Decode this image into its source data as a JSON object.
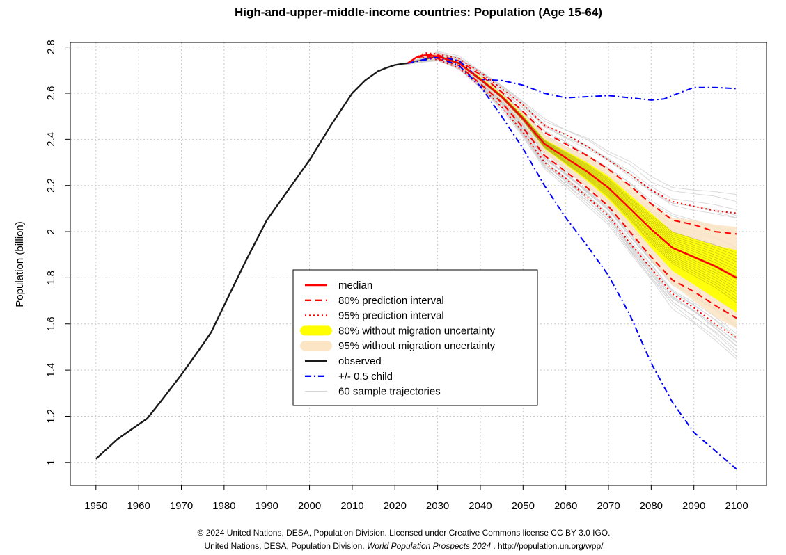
{
  "chart_data": {
    "type": "line",
    "title": "High-and-upper-middle-income countries: Population (Age 15-64)",
    "xlabel": "",
    "ylabel": "Population (billion)",
    "xlim": [
      1944,
      2107
    ],
    "ylim": [
      0.9,
      2.82
    ],
    "x_ticks": [
      1950,
      1960,
      1970,
      1980,
      1990,
      2000,
      2010,
      2020,
      2030,
      2040,
      2050,
      2060,
      2070,
      2080,
      2090,
      2100
    ],
    "y_ticks": [
      1.0,
      1.2,
      1.4,
      1.6,
      1.8,
      2.0,
      2.2,
      2.4,
      2.6,
      2.8
    ],
    "y_tick_labels": [
      "1",
      "1.2",
      "1.4",
      "1.6",
      "1.8",
      "2",
      "2.2",
      "2.4",
      "2.6",
      "2.8"
    ],
    "grid": true,
    "legend_position": "center-left",
    "colors": {
      "median": "#ff0000",
      "pi80": "#ff0000",
      "pi95": "#ff0000",
      "nomig80": "#ffff00",
      "nomig95": "#fce5c4",
      "observed": "#1a1a1a",
      "half_child": "#0000ff",
      "samples": "#cfcfcf"
    },
    "legend": [
      {
        "key": "median",
        "label": "median",
        "style": "solid"
      },
      {
        "key": "pi80",
        "label": "80% prediction interval",
        "style": "dashed"
      },
      {
        "key": "pi95",
        "label": "95% prediction interval",
        "style": "dotted"
      },
      {
        "key": "nomig80",
        "label": "80% without migration uncertainty",
        "style": "band"
      },
      {
        "key": "nomig95",
        "label": "95% without migration uncertainty",
        "style": "band"
      },
      {
        "key": "observed",
        "label": "observed",
        "style": "solid"
      },
      {
        "key": "half_child",
        "label": "+/- 0.5 child",
        "style": "dashdot"
      },
      {
        "key": "samples",
        "label": "60 sample trajectories",
        "style": "thin"
      }
    ],
    "observed": {
      "x": [
        1950,
        1955,
        1960,
        1962,
        1965,
        1970,
        1975,
        1977,
        1980,
        1985,
        1990,
        1995,
        2000,
        2005,
        2010,
        2013,
        2016,
        2018,
        2020,
        2022,
        2023
      ],
      "y": [
        1.015,
        1.1,
        1.165,
        1.19,
        1.26,
        1.38,
        1.51,
        1.565,
        1.68,
        1.87,
        2.05,
        2.18,
        2.31,
        2.46,
        2.6,
        2.655,
        2.695,
        2.71,
        2.722,
        2.728,
        2.73
      ]
    },
    "median": {
      "x": [
        2023,
        2025,
        2027,
        2030,
        2035,
        2040,
        2045,
        2050,
        2055,
        2060,
        2065,
        2070,
        2075,
        2080,
        2085,
        2090,
        2095,
        2100
      ],
      "y": [
        2.73,
        2.755,
        2.765,
        2.76,
        2.73,
        2.66,
        2.585,
        2.49,
        2.38,
        2.32,
        2.26,
        2.19,
        2.1,
        2.01,
        1.93,
        1.89,
        1.85,
        1.8
      ]
    },
    "pi80": {
      "x": [
        2023,
        2025,
        2027,
        2030,
        2035,
        2040,
        2045,
        2050,
        2055,
        2060,
        2065,
        2070,
        2075,
        2080,
        2085,
        2090,
        2095,
        2100
      ],
      "lower": [
        2.73,
        2.755,
        2.76,
        2.75,
        2.72,
        2.64,
        2.56,
        2.45,
        2.33,
        2.26,
        2.19,
        2.11,
        2.0,
        1.89,
        1.79,
        1.74,
        1.68,
        1.625
      ],
      "upper": [
        2.73,
        2.755,
        2.77,
        2.765,
        2.74,
        2.68,
        2.605,
        2.52,
        2.43,
        2.38,
        2.33,
        2.27,
        2.2,
        2.12,
        2.05,
        2.03,
        2.0,
        1.99
      ]
    },
    "pi95": {
      "x": [
        2023,
        2025,
        2027,
        2030,
        2035,
        2040,
        2045,
        2050,
        2055,
        2060,
        2065,
        2070,
        2075,
        2080,
        2085,
        2090,
        2095,
        2100
      ],
      "lower": [
        2.73,
        2.755,
        2.755,
        2.745,
        2.71,
        2.63,
        2.54,
        2.43,
        2.3,
        2.23,
        2.15,
        2.07,
        1.95,
        1.84,
        1.73,
        1.67,
        1.6,
        1.54
      ],
      "upper": [
        2.73,
        2.755,
        2.775,
        2.77,
        2.75,
        2.69,
        2.62,
        2.55,
        2.46,
        2.42,
        2.37,
        2.31,
        2.25,
        2.18,
        2.13,
        2.11,
        2.09,
        2.08
      ]
    },
    "nomig80": {
      "x": [
        2023,
        2030,
        2035,
        2040,
        2045,
        2050,
        2055,
        2060,
        2065,
        2070,
        2075,
        2080,
        2085,
        2090,
        2095,
        2100
      ],
      "lower": [
        2.73,
        2.755,
        2.725,
        2.655,
        2.58,
        2.48,
        2.36,
        2.29,
        2.22,
        2.14,
        2.04,
        1.93,
        1.83,
        1.77,
        1.71,
        1.65
      ],
      "upper": [
        2.73,
        2.765,
        2.735,
        2.67,
        2.595,
        2.505,
        2.4,
        2.35,
        2.3,
        2.24,
        2.16,
        2.08,
        2.0,
        1.97,
        1.94,
        1.92
      ]
    },
    "nomig95": {
      "x": [
        2023,
        2030,
        2035,
        2040,
        2045,
        2050,
        2055,
        2060,
        2065,
        2070,
        2075,
        2080,
        2085,
        2090,
        2095,
        2100
      ],
      "lower": [
        2.73,
        2.75,
        2.72,
        2.65,
        2.57,
        2.47,
        2.34,
        2.27,
        2.19,
        2.11,
        2.0,
        1.88,
        1.77,
        1.7,
        1.63,
        1.58
      ],
      "upper": [
        2.73,
        2.77,
        2.74,
        2.675,
        2.6,
        2.515,
        2.42,
        2.37,
        2.33,
        2.27,
        2.2,
        2.12,
        2.06,
        2.05,
        2.03,
        2.02
      ]
    },
    "half_child_upper": {
      "x": [
        2023,
        2030,
        2035,
        2040,
        2045,
        2050,
        2055,
        2060,
        2065,
        2070,
        2075,
        2080,
        2083,
        2085,
        2090,
        2095,
        2100
      ],
      "y": [
        2.73,
        2.76,
        2.74,
        2.66,
        2.655,
        2.635,
        2.6,
        2.58,
        2.585,
        2.59,
        2.58,
        2.57,
        2.575,
        2.59,
        2.625,
        2.625,
        2.62
      ]
    },
    "half_child_lower": {
      "x": [
        2023,
        2030,
        2035,
        2040,
        2045,
        2050,
        2055,
        2060,
        2065,
        2070,
        2075,
        2080,
        2085,
        2090,
        2095,
        2100
      ],
      "y": [
        2.73,
        2.755,
        2.72,
        2.63,
        2.5,
        2.36,
        2.2,
        2.06,
        1.94,
        1.81,
        1.64,
        1.43,
        1.26,
        1.13,
        1.05,
        0.97
      ]
    },
    "sample_count": 60
  },
  "credit": {
    "line1": "© 2024 United Nations, DESA, Population Division. Licensed under Creative Commons license CC BY 3.0 IGO.",
    "line2_prefix": "United Nations, DESA, Population Division. ",
    "line2_italic": "World Population Prospects 2024",
    "line2_suffix": " . http://population.un.org/wpp/"
  }
}
